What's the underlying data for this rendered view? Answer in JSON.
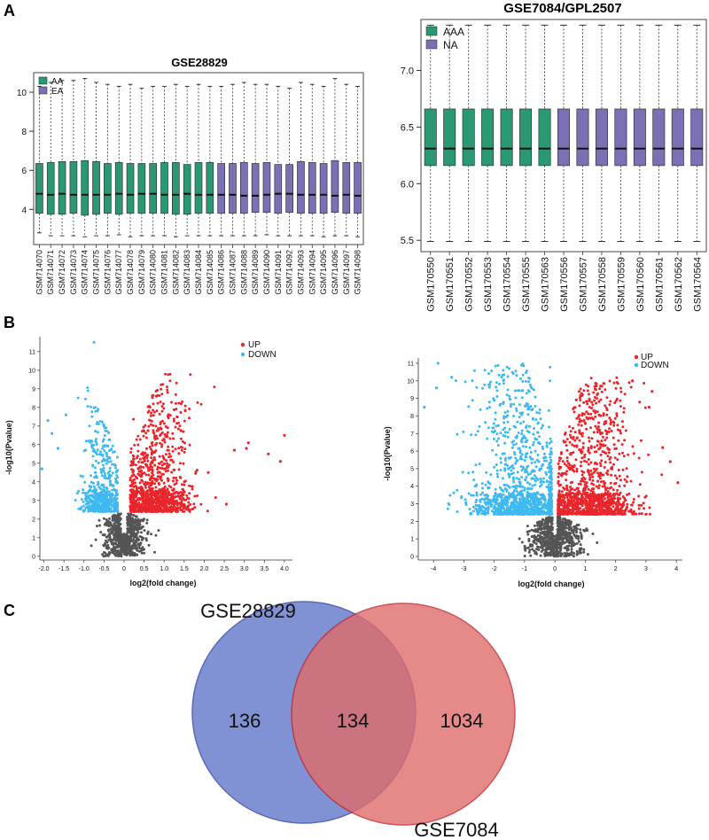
{
  "panels": {
    "a": "A",
    "b": "B",
    "c": "C"
  },
  "chart_data": [
    {
      "type": "boxplot",
      "id": "box1",
      "title": "GSE28829",
      "ylim": [
        2.2,
        11
      ],
      "yticks": [
        4,
        6,
        8,
        10
      ],
      "legend": [
        {
          "label": "AA",
          "color": "#2a9972"
        },
        {
          "label": "EA",
          "color": "#7b70b3"
        }
      ],
      "legend_position": "top-left",
      "categories": [
        "GSM714070",
        "GSM714071",
        "GSM714072",
        "GSM714073",
        "GSM714074",
        "GSM714075",
        "GSM714076",
        "GSM714077",
        "GSM714078",
        "GSM714079",
        "GSM714080",
        "GSM714081",
        "GSM714082",
        "GSM714083",
        "GSM714084",
        "GSM714085",
        "GSM714086",
        "GSM714087",
        "GSM714088",
        "GSM714089",
        "GSM714090",
        "GSM714091",
        "GSM714092",
        "GSM714093",
        "GSM714094",
        "GSM714095",
        "GSM714096",
        "GSM714097",
        "GSM714098"
      ],
      "groups": [
        "AA",
        "AA",
        "AA",
        "AA",
        "AA",
        "AA",
        "AA",
        "AA",
        "AA",
        "AA",
        "AA",
        "AA",
        "AA",
        "AA",
        "AA",
        "AA",
        "EA",
        "EA",
        "EA",
        "EA",
        "EA",
        "EA",
        "EA",
        "EA",
        "EA",
        "EA",
        "EA",
        "EA",
        "EA"
      ],
      "q1": [
        3.8,
        3.75,
        3.75,
        3.8,
        3.7,
        3.75,
        3.8,
        3.75,
        3.8,
        3.8,
        3.8,
        3.8,
        3.75,
        3.75,
        3.8,
        3.8,
        3.8,
        3.8,
        3.8,
        3.85,
        3.85,
        3.8,
        3.85,
        3.8,
        3.8,
        3.8,
        3.85,
        3.8,
        3.8
      ],
      "median": [
        4.8,
        4.75,
        4.8,
        4.75,
        4.75,
        4.75,
        4.75,
        4.8,
        4.75,
        4.8,
        4.8,
        4.75,
        4.75,
        4.8,
        4.75,
        4.75,
        4.75,
        4.75,
        4.7,
        4.7,
        4.75,
        4.8,
        4.8,
        4.75,
        4.75,
        4.75,
        4.7,
        4.75,
        4.7
      ],
      "q3": [
        6.35,
        6.4,
        6.45,
        6.45,
        6.5,
        6.45,
        6.35,
        6.4,
        6.35,
        6.35,
        6.35,
        6.4,
        6.4,
        6.3,
        6.4,
        6.4,
        6.35,
        6.35,
        6.4,
        6.35,
        6.4,
        6.3,
        6.3,
        6.45,
        6.4,
        6.35,
        6.5,
        6.4,
        6.4
      ],
      "whisker_low": [
        2.8,
        2.65,
        2.65,
        2.65,
        2.6,
        2.65,
        2.65,
        2.7,
        2.6,
        2.65,
        2.65,
        2.65,
        2.6,
        2.65,
        2.65,
        2.65,
        2.65,
        2.65,
        2.65,
        2.65,
        2.7,
        2.65,
        2.65,
        2.65,
        2.65,
        2.6,
        2.65,
        2.65,
        2.6
      ],
      "whisker_high": [
        10.3,
        10.5,
        10.6,
        10.6,
        10.7,
        10.5,
        10.4,
        10.3,
        10.4,
        10.2,
        10.3,
        10.3,
        10.4,
        10.3,
        10.4,
        10.3,
        10.3,
        10.4,
        10.5,
        10.4,
        10.4,
        10.3,
        10.2,
        10.5,
        10.4,
        10.3,
        10.7,
        10.4,
        10.3
      ]
    },
    {
      "type": "boxplot",
      "id": "box2",
      "title": "GSE7084/GPL2507",
      "ylim": [
        5.4,
        7.45
      ],
      "yticks": [
        5.5,
        6.0,
        6.5,
        7.0
      ],
      "ytick_labels": [
        "5.5",
        "6.0",
        "6.5",
        "7.0"
      ],
      "legend": [
        {
          "label": "AAA",
          "color": "#2a9972"
        },
        {
          "label": "NA",
          "color": "#7b70b3"
        }
      ],
      "legend_position": "top-left",
      "categories": [
        "GSM170550",
        "GSM170551",
        "GSM170552",
        "GSM170553",
        "GSM170554",
        "GSM170555",
        "GSM170563",
        "GSM170556",
        "GSM170557",
        "GSM170558",
        "GSM170559",
        "GSM170560",
        "GSM170561",
        "GSM170562",
        "GSM170564"
      ],
      "groups": [
        "AAA",
        "AAA",
        "AAA",
        "AAA",
        "AAA",
        "AAA",
        "AAA",
        "NA",
        "NA",
        "NA",
        "NA",
        "NA",
        "NA",
        "NA",
        "NA"
      ],
      "q1": [
        6.16,
        6.16,
        6.16,
        6.16,
        6.16,
        6.16,
        6.16,
        6.16,
        6.16,
        6.16,
        6.16,
        6.16,
        6.16,
        6.16,
        6.16
      ],
      "median": [
        6.31,
        6.31,
        6.31,
        6.31,
        6.31,
        6.31,
        6.31,
        6.31,
        6.31,
        6.31,
        6.31,
        6.31,
        6.31,
        6.31,
        6.31
      ],
      "q3": [
        6.66,
        6.66,
        6.66,
        6.66,
        6.66,
        6.66,
        6.66,
        6.66,
        6.66,
        6.66,
        6.66,
        6.66,
        6.66,
        6.66,
        6.66
      ],
      "whisker_low": [
        5.49,
        5.49,
        5.49,
        5.49,
        5.49,
        5.49,
        5.49,
        5.49,
        5.49,
        5.49,
        5.49,
        5.49,
        5.49,
        5.49,
        5.49
      ],
      "whisker_high": [
        7.4,
        7.4,
        7.4,
        7.4,
        7.4,
        7.4,
        7.4,
        7.4,
        7.4,
        7.4,
        7.4,
        7.4,
        7.4,
        7.4,
        7.4
      ]
    },
    {
      "type": "scatter",
      "id": "vol1",
      "subtype": "volcano",
      "xlabel": "log2(fold change)",
      "ylabel": "-log10(Pvalue)",
      "xlim": [
        -2.1,
        4.2
      ],
      "ylim": [
        -0.2,
        11.8
      ],
      "xticks": [
        -2.0,
        -1.5,
        -1.0,
        -0.5,
        0,
        0.5,
        1.0,
        1.5,
        2.0,
        2.5,
        3.0,
        3.5,
        4.0
      ],
      "xtick_labels": [
        "-2.0",
        "-1.5",
        "-1.0",
        "-0.5",
        "0",
        "0.5",
        "1.0",
        "1.5",
        "2.0",
        "2.5",
        "3.0",
        "3.5",
        "4.0"
      ],
      "yticks": [
        0,
        1,
        2,
        3,
        4,
        5,
        6,
        7,
        8,
        9,
        10,
        11
      ],
      "legend": [
        {
          "label": "UP",
          "color": "#e8262c"
        },
        {
          "label": "DOWN",
          "color": "#3fb9ef"
        }
      ],
      "legend_position": "top-right",
      "threshold_y": 2.4,
      "series": [
        {
          "name": "UP",
          "color": "#e8262c",
          "x_center": 0.75,
          "x_spread": 0.45,
          "x_min": 0.15,
          "x_max": 2.3,
          "y_min": 2.4,
          "y_max": 9.8,
          "count": 1100
        },
        {
          "name": "DOWN",
          "color": "#3fb9ef",
          "x_center": -0.55,
          "x_spread": 0.22,
          "x_min": -1.3,
          "x_max": -0.15,
          "y_min": 2.4,
          "y_max": 9.3,
          "count": 550
        },
        {
          "name": "NS",
          "color": "#555555",
          "x_center": 0.0,
          "x_spread": 0.4,
          "x_min": -1.2,
          "x_max": 1.2,
          "y_min": 0.0,
          "y_max": 2.4,
          "count": 700
        }
      ],
      "outliers_up": [
        [
          3.05,
          5.8
        ],
        [
          3.1,
          6.1
        ],
        [
          2.75,
          5.7
        ],
        [
          3.6,
          5.5
        ],
        [
          4.0,
          6.5
        ],
        [
          3.9,
          5.1
        ],
        [
          2.55,
          2.8
        ],
        [
          2.1,
          4.5
        ]
      ],
      "outliers_down": [
        [
          -0.75,
          11.5
        ],
        [
          -1.9,
          7.3
        ],
        [
          -2.05,
          4.7
        ],
        [
          -1.65,
          5.8
        ],
        [
          -1.8,
          6.6
        ],
        [
          -1.45,
          7.6
        ]
      ]
    },
    {
      "type": "scatter",
      "id": "vol2",
      "subtype": "volcano",
      "xlabel": "log2(fold change)",
      "ylabel": "-log10(Pvalue)",
      "xlim": [
        -4.5,
        4.2
      ],
      "ylim": [
        -0.2,
        11.3
      ],
      "xticks": [
        -4,
        -3,
        -2,
        -1,
        0,
        1,
        2,
        3,
        4
      ],
      "xtick_labels": [
        "-4",
        "-3",
        "-2",
        "-1",
        "0",
        "1",
        "2",
        "3",
        "4"
      ],
      "yticks": [
        0,
        1,
        2,
        3,
        4,
        5,
        6,
        7,
        8,
        9,
        10,
        11
      ],
      "legend": [
        {
          "label": "UP",
          "color": "#e8262c"
        },
        {
          "label": "DOWN",
          "color": "#3fb9ef"
        }
      ],
      "legend_position": "top-right",
      "threshold_y": 2.4,
      "series": [
        {
          "name": "UP",
          "color": "#e8262c",
          "x_center": 1.2,
          "x_spread": 0.7,
          "x_min": 0.1,
          "x_max": 3.6,
          "y_min": 2.4,
          "y_max": 10.2,
          "count": 1200
        },
        {
          "name": "DOWN",
          "color": "#3fb9ef",
          "x_center": -1.1,
          "x_spread": 0.8,
          "x_min": -4.1,
          "x_max": -0.1,
          "y_min": 2.4,
          "y_max": 11.0,
          "count": 1200
        },
        {
          "name": "NS",
          "color": "#555555",
          "x_center": 0.0,
          "x_spread": 0.7,
          "x_min": -2.2,
          "x_max": 2.2,
          "y_min": 0.0,
          "y_max": 2.4,
          "count": 700
        }
      ],
      "outliers_up": [
        [
          3.8,
          5.4
        ],
        [
          4.05,
          4.2
        ],
        [
          3.2,
          9.4
        ],
        [
          3.1,
          8.5
        ],
        [
          3.55,
          6.2
        ]
      ],
      "outliers_down": [
        [
          -3.85,
          11.0
        ],
        [
          -4.3,
          8.5
        ],
        [
          -3.4,
          10.2
        ],
        [
          -3.9,
          9.6
        ]
      ]
    },
    {
      "type": "venn",
      "id": "venn",
      "sets": [
        {
          "name": "GSE28829",
          "color": "#6b7fcc",
          "only": "136"
        },
        {
          "name": "GSE7084",
          "color": "#e06c6c",
          "only": "1034"
        }
      ],
      "intersection": "134",
      "intersection_color": "#a34a6e"
    }
  ]
}
